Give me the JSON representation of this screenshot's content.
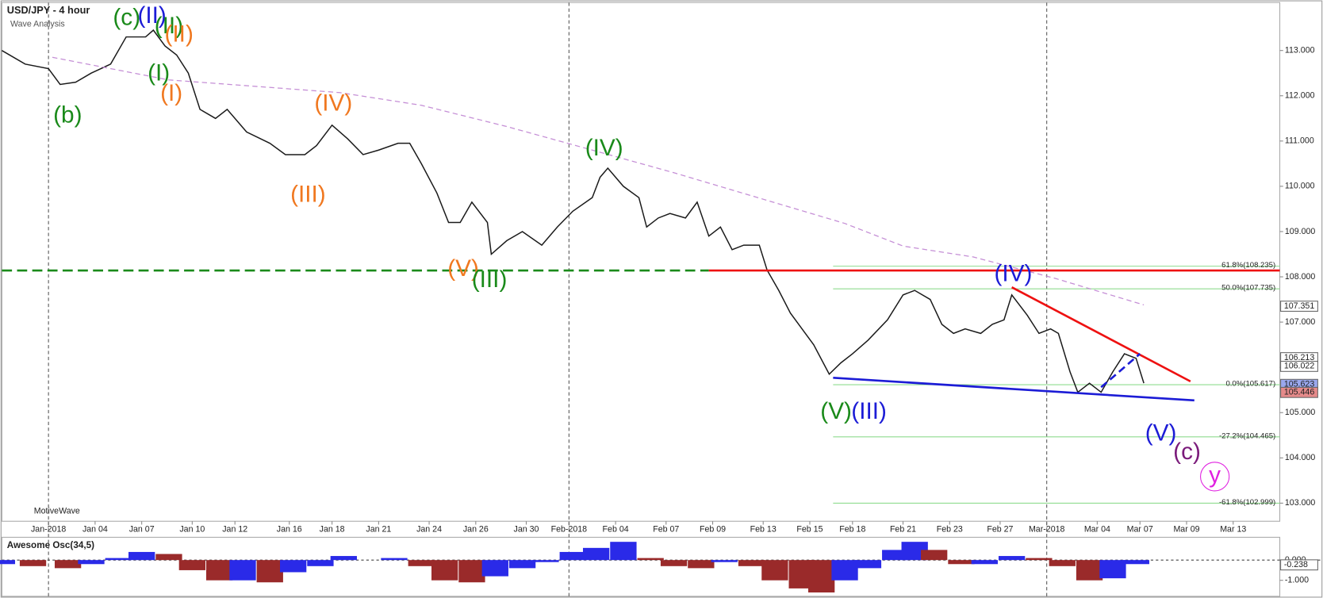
{
  "chart_data": [
    {
      "type": "line",
      "title": "USD/JPY - 4 hour",
      "subtitle": "Wave Analysis",
      "watermark": "MotiveWave",
      "xlim": [
        0,
        329
      ],
      "ylim": [
        102.6,
        114.06
      ],
      "xticks": [
        {
          "value": 12,
          "label": "Jan-2018"
        },
        {
          "value": 24,
          "label": "Jan 04"
        },
        {
          "value": 36,
          "label": "Jan 07"
        },
        {
          "value": 49,
          "label": "Jan 10"
        },
        {
          "value": 60,
          "label": "Jan 12"
        },
        {
          "value": 74,
          "label": "Jan 16"
        },
        {
          "value": 85,
          "label": "Jan 18"
        },
        {
          "value": 97,
          "label": "Jan 21"
        },
        {
          "value": 110,
          "label": "Jan 24"
        },
        {
          "value": 122,
          "label": "Jan 26"
        },
        {
          "value": 135,
          "label": "Jan 30"
        },
        {
          "value": 146,
          "label": "Feb-2018"
        },
        {
          "value": 158,
          "label": "Feb 04"
        },
        {
          "value": 171,
          "label": "Feb 07"
        },
        {
          "value": 183,
          "label": "Feb 09"
        },
        {
          "value": 196,
          "label": "Feb 13"
        },
        {
          "value": 208,
          "label": "Feb 15"
        },
        {
          "value": 219,
          "label": "Feb 18"
        },
        {
          "value": 232,
          "label": "Feb 21"
        },
        {
          "value": 244,
          "label": "Feb 23"
        },
        {
          "value": 257,
          "label": "Feb 27"
        },
        {
          "value": 269,
          "label": "Mar-2018"
        },
        {
          "value": 282,
          "label": "Mar 04"
        },
        {
          "value": 293,
          "label": "Mar 07"
        },
        {
          "value": 305,
          "label": "Mar 09"
        },
        {
          "value": 317,
          "label": "Mar 13"
        }
      ],
      "separators": [
        0,
        11,
        21
      ],
      "yticks": [
        {
          "value": 103,
          "label": "103.000"
        },
        {
          "value": 104,
          "label": "104.000"
        },
        {
          "value": 105,
          "label": "105.000"
        },
        {
          "value": 106,
          "label": "106.000"
        },
        {
          "value": 107,
          "label": "107.000"
        },
        {
          "value": 108,
          "label": "108.000"
        },
        {
          "value": 109,
          "label": "109.000"
        },
        {
          "value": 110,
          "label": "110.000"
        },
        {
          "value": 111,
          "label": "111.000"
        },
        {
          "value": 112,
          "label": "112.000"
        },
        {
          "value": 113,
          "label": "113.000"
        }
      ],
      "series": [
        {
          "color": "#1a1a1a",
          "x": [
            0,
            6,
            12,
            15,
            19,
            23,
            28,
            32,
            37,
            39,
            42,
            45,
            48,
            51,
            55,
            58,
            63,
            69,
            73,
            78,
            81,
            85,
            89,
            93,
            97,
            102,
            105,
            108,
            112,
            115,
            118,
            121,
            125,
            126,
            130,
            134,
            139,
            143,
            147,
            152,
            154,
            156,
            160,
            164,
            166,
            169,
            172,
            176,
            179,
            182,
            185,
            188,
            191,
            195,
            197,
            200,
            203,
            206,
            209,
            213,
            216,
            219,
            223,
            228,
            232,
            235,
            239,
            242,
            245,
            248,
            252,
            255,
            258,
            260,
            264,
            267,
            270,
            272,
            275,
            277,
            280,
            283,
            286,
            289,
            292,
            294
          ],
          "values": [
            113.0,
            112.7,
            112.6,
            112.25,
            112.3,
            112.5,
            112.7,
            113.3,
            113.3,
            113.45,
            113.1,
            112.9,
            112.5,
            111.7,
            111.5,
            111.7,
            111.2,
            110.95,
            110.7,
            110.7,
            110.9,
            111.35,
            111.05,
            110.7,
            110.8,
            110.95,
            110.95,
            110.5,
            109.85,
            109.2,
            109.2,
            109.65,
            109.2,
            108.5,
            108.8,
            109.0,
            108.7,
            109.1,
            109.45,
            109.75,
            110.2,
            110.4,
            110.0,
            109.75,
            109.1,
            109.3,
            109.4,
            109.3,
            109.65,
            108.9,
            109.1,
            108.6,
            108.7,
            108.7,
            108.15,
            107.7,
            107.2,
            106.85,
            106.5,
            105.85,
            106.1,
            106.3,
            106.6,
            107.05,
            107.6,
            107.7,
            107.5,
            106.95,
            106.75,
            106.85,
            106.75,
            106.95,
            107.05,
            107.6,
            107.15,
            106.75,
            106.85,
            106.75,
            105.9,
            105.45,
            105.65,
            105.45,
            105.9,
            106.3,
            106.2,
            105.65
          ]
        },
        {
          "color": "#c58fd6",
          "dashed": true,
          "x": [
            13,
            43,
            87,
            108,
            130,
            152,
            173,
            195,
            217,
            232,
            250,
            271,
            294
          ],
          "values": [
            112.85,
            112.35,
            112.07,
            111.79,
            111.32,
            110.8,
            110.3,
            109.74,
            109.18,
            108.68,
            108.44,
            107.97,
            107.38
          ]
        }
      ],
      "hlines": [
        {
          "value": 108.14,
          "color": "#1a8a1a",
          "x1": 0,
          "x2": 182,
          "dashed": true
        },
        {
          "value": 108.14,
          "color": "#ee1111",
          "x1": 182,
          "x2": 329
        }
      ],
      "trend_lines": [
        {
          "x1": 260,
          "y1": 107.77,
          "x2": 306,
          "y2": 105.69,
          "color": "#ee1111"
        },
        {
          "x1": 214,
          "y1": 105.77,
          "x2": 307,
          "y2": 105.27,
          "color": "#1c1cd6"
        },
        {
          "x1": 283,
          "y1": 105.56,
          "x2": 293,
          "y2": 106.3,
          "color": "#1c1cd6",
          "dashed": true
        }
      ],
      "fib_levels": [
        {
          "value": 108.235,
          "label": "61.8%(108.235)"
        },
        {
          "value": 107.735,
          "label": "50.0%(107.735)"
        },
        {
          "value": 105.617,
          "label": "0.0%(105.617)"
        },
        {
          "value": 104.465,
          "label": "-27.2%(104.465)"
        },
        {
          "value": 102.999,
          "label": "-61.8%(102.999)"
        }
      ],
      "fib_color": "#8fdc8f",
      "fib_start": 214,
      "price_labels": [
        {
          "value": 107.351,
          "color": "#ffffff"
        },
        {
          "value": 106.213,
          "color": "#ffffff"
        },
        {
          "value": 106.022,
          "color": "#ffffff"
        },
        {
          "value": 105.623,
          "color": "#9aa8ee"
        },
        {
          "value": 105.446,
          "color": "#e58a8a"
        }
      ],
      "wave_labels": [
        {
          "text": "(c)",
          "color": "#1a8a1a"
        },
        {
          "text": "(II)",
          "color": "#1c1cd6"
        },
        {
          "text": "(II)",
          "color": "#1a8a1a"
        },
        {
          "text": "(II)",
          "color": "#f07820"
        },
        {
          "text": "(I)",
          "color": "#1a8a1a"
        },
        {
          "text": "(I)",
          "color": "#f07820"
        },
        {
          "text": "(b)",
          "color": "#1a8a1a"
        },
        {
          "text": "(IV)",
          "color": "#f07820"
        },
        {
          "text": "(III)",
          "color": "#f07820"
        },
        {
          "text": "(V)",
          "color": "#f07820"
        },
        {
          "text": "(III)",
          "color": "#1a8a1a"
        },
        {
          "text": "(IV)",
          "color": "#1a8a1a"
        },
        {
          "text": "(V)",
          "color": "#1a8a1a"
        },
        {
          "text": "(III)",
          "color": "#1c1cd6"
        },
        {
          "text": "(IV)",
          "color": "#1c1cd6"
        },
        {
          "text": "(V)",
          "color": "#1c1cd6"
        },
        {
          "text": "(c)",
          "color": "#7a1a7a"
        },
        {
          "text": "y",
          "color": "#e020e0"
        }
      ]
    },
    {
      "type": "bar",
      "title": "Awesome Osc(34,5)",
      "xlim": [
        0,
        329
      ],
      "ylim": [
        -1.79,
        1.125
      ],
      "yticks": [
        {
          "value": 0,
          "label": "0.000"
        },
        {
          "value": -1,
          "label": "-1.000"
        }
      ],
      "current": {
        "value": -0.238,
        "label": "-0.238"
      },
      "up_color": "#2a2ae8",
      "down_color": "#9a2a2a",
      "x": [
        0,
        8,
        17,
        23,
        30,
        36,
        43,
        49,
        56,
        62,
        69,
        75,
        82,
        88,
        95,
        101,
        108,
        114,
        121,
        127,
        134,
        140,
        147,
        153,
        160,
        167,
        173,
        180,
        186,
        193,
        199,
        206,
        211,
        217,
        223,
        230,
        235,
        240,
        247,
        253,
        260,
        267,
        273,
        280,
        286,
        292
      ],
      "values": [
        -0.2,
        -0.3,
        -0.4,
        -0.2,
        0.1,
        0.4,
        0.3,
        -0.5,
        -1.0,
        -1.0,
        -1.1,
        -0.6,
        -0.3,
        0.2,
        0.0,
        0.1,
        -0.3,
        -1.0,
        -1.1,
        -0.8,
        -0.4,
        -0.1,
        0.4,
        0.6,
        0.9,
        0.1,
        -0.3,
        -0.4,
        -0.1,
        -0.3,
        -1.0,
        -1.4,
        -1.6,
        -1.0,
        -0.4,
        0.5,
        0.9,
        0.5,
        -0.2,
        -0.2,
        0.2,
        0.1,
        -0.3,
        -1.0,
        -0.9,
        -0.2
      ]
    }
  ]
}
